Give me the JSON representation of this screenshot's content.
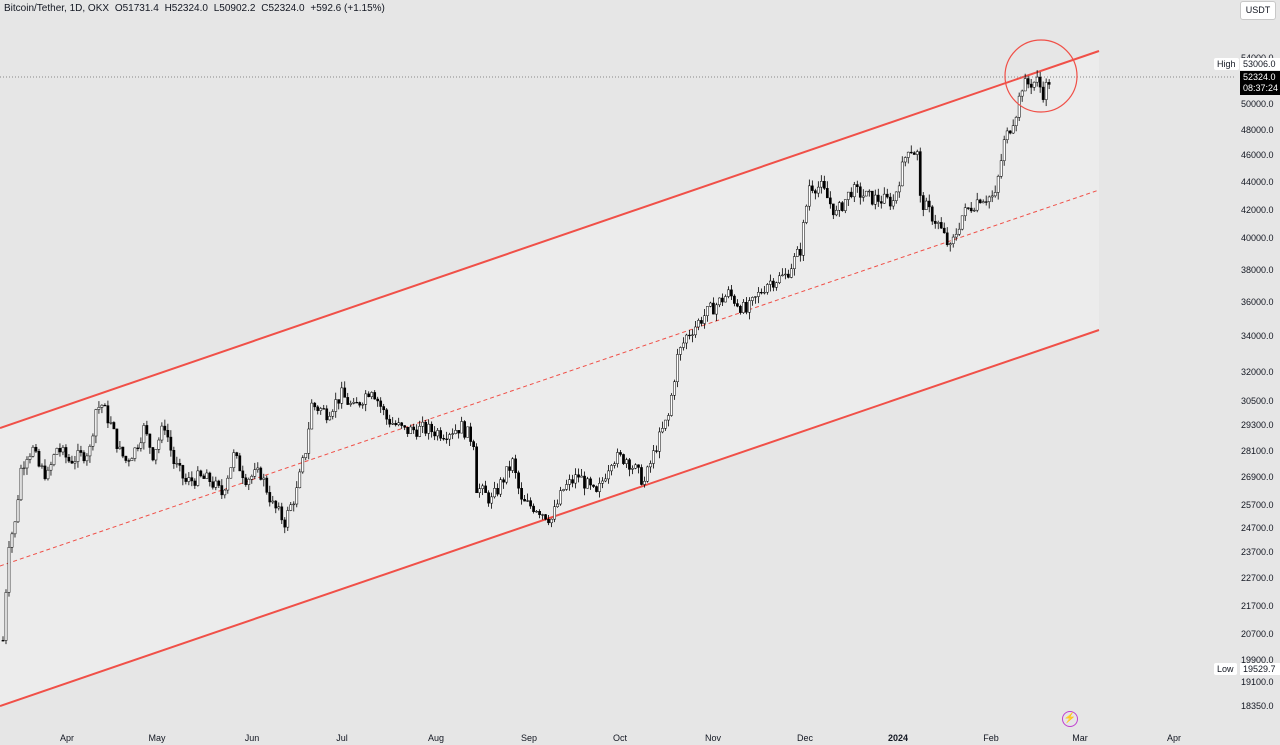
{
  "header": {
    "symbol": "Bitcoin/Tether, 1D, OKX",
    "open": "O51731.4",
    "high": "H52324.0",
    "low": "L50902.2",
    "close": "C52324.0",
    "change": "+592.6 (+1.15%)"
  },
  "currency_badge": "USDT",
  "price_scale": {
    "ticks": [
      "54000.0",
      "53006.0",
      "50000.0",
      "48000.0",
      "46000.0",
      "44000.0",
      "42000.0",
      "40000.0",
      "38000.0",
      "36000.0",
      "34000.0",
      "32000.0",
      "30500.0",
      "29300.0",
      "28100.0",
      "26900.0",
      "25700.0",
      "24700.0",
      "23700.0",
      "22700.0",
      "21700.0",
      "20700.0",
      "19900.0",
      "19529.7",
      "19100.0",
      "18350.0"
    ],
    "last_price": "52324.0",
    "countdown": "08:37:24",
    "high_label": "High",
    "high_value": "53006.0",
    "low_label": "Low",
    "low_value": "19529.7"
  },
  "time_scale": {
    "labels": [
      "Apr",
      "May",
      "Jun",
      "Jul",
      "Aug",
      "Sep",
      "Oct",
      "Nov",
      "Dec",
      "2024",
      "Feb",
      "Mar",
      "Apr"
    ]
  },
  "colors": {
    "channel_line": "#f05048",
    "channel_fill": "#ececec",
    "candle": "#000000",
    "circle": "#f05048",
    "background": "#e6e6e6"
  },
  "icons": {
    "bolt": "lightning-icon"
  },
  "chart_data": {
    "type": "candlestick",
    "title": "Bitcoin/Tether, 1D, OKX",
    "y_scale": "log",
    "ylim": [
      17800,
      56000
    ],
    "x_range": [
      "2023-03-11",
      "2024-04-26"
    ],
    "ohlc_close": [
      [
        "2023-03-12",
        20600
      ],
      [
        "2023-03-14",
        24300
      ],
      [
        "2023-03-16",
        25000
      ],
      [
        "2023-03-18",
        27400
      ],
      [
        "2023-03-20",
        28100
      ],
      [
        "2023-03-22",
        28300
      ],
      [
        "2023-03-24",
        27500
      ],
      [
        "2023-03-27",
        27100
      ],
      [
        "2023-03-30",
        28400
      ],
      [
        "2023-04-03",
        27800
      ],
      [
        "2023-04-07",
        28000
      ],
      [
        "2023-04-10",
        28300
      ],
      [
        "2023-04-12",
        30300
      ],
      [
        "2023-04-14",
        30500
      ],
      [
        "2023-04-17",
        29500
      ],
      [
        "2023-04-20",
        28200
      ],
      [
        "2023-04-22",
        27800
      ],
      [
        "2023-04-25",
        28300
      ],
      [
        "2023-04-28",
        29300
      ],
      [
        "2023-05-01",
        28100
      ],
      [
        "2023-05-05",
        29500
      ],
      [
        "2023-05-08",
        27700
      ],
      [
        "2023-05-12",
        26800
      ],
      [
        "2023-05-16",
        27000
      ],
      [
        "2023-05-20",
        26900
      ],
      [
        "2023-05-24",
        26300
      ],
      [
        "2023-05-28",
        28000
      ],
      [
        "2023-06-01",
        27000
      ],
      [
        "2023-06-06",
        27200
      ],
      [
        "2023-06-10",
        25800
      ],
      [
        "2023-06-14",
        25100
      ],
      [
        "2023-06-18",
        26400
      ],
      [
        "2023-06-21",
        28300
      ],
      [
        "2023-06-23",
        30500
      ],
      [
        "2023-06-28",
        30100
      ],
      [
        "2023-07-03",
        31000
      ],
      [
        "2023-07-07",
        30300
      ],
      [
        "2023-07-13",
        31400
      ],
      [
        "2023-07-18",
        29800
      ],
      [
        "2023-07-24",
        29200
      ],
      [
        "2023-07-30",
        29300
      ],
      [
        "2023-08-06",
        29100
      ],
      [
        "2023-08-12",
        29400
      ],
      [
        "2023-08-16",
        28700
      ],
      [
        "2023-08-17",
        26600
      ],
      [
        "2023-08-22",
        26000
      ],
      [
        "2023-08-29",
        27700
      ],
      [
        "2023-09-01",
        25900
      ],
      [
        "2023-09-06",
        25700
      ],
      [
        "2023-09-11",
        25200
      ],
      [
        "2023-09-15",
        26500
      ],
      [
        "2023-09-20",
        27100
      ],
      [
        "2023-09-26",
        26200
      ],
      [
        "2023-10-01",
        27900
      ],
      [
        "2023-10-06",
        27900
      ],
      [
        "2023-10-12",
        26800
      ],
      [
        "2023-10-16",
        28500
      ],
      [
        "2023-10-20",
        29900
      ],
      [
        "2023-10-23",
        33000
      ],
      [
        "2023-10-26",
        34200
      ],
      [
        "2023-11-01",
        35400
      ],
      [
        "2023-11-09",
        36700
      ],
      [
        "2023-11-15",
        35600
      ],
      [
        "2023-11-22",
        37400
      ],
      [
        "2023-11-28",
        37800
      ],
      [
        "2023-12-03",
        39500
      ],
      [
        "2023-12-06",
        44000
      ],
      [
        "2023-12-10",
        43800
      ],
      [
        "2023-12-15",
        41900
      ],
      [
        "2023-12-20",
        43600
      ],
      [
        "2023-12-27",
        43000
      ],
      [
        "2024-01-03",
        42800
      ],
      [
        "2024-01-08",
        46900
      ],
      [
        "2024-01-11",
        46300
      ],
      [
        "2024-01-12",
        42900
      ],
      [
        "2024-01-18",
        41200
      ],
      [
        "2024-01-22",
        39500
      ],
      [
        "2024-01-26",
        41800
      ],
      [
        "2024-02-01",
        43100
      ],
      [
        "2024-02-06",
        43100
      ],
      [
        "2024-02-09",
        47200
      ],
      [
        "2024-02-13",
        49700
      ],
      [
        "2024-02-15",
        51900
      ],
      [
        "2024-02-20",
        52300
      ],
      [
        "2024-02-22",
        51300
      ],
      [
        "2024-02-24",
        52324
      ]
    ],
    "channel": {
      "upper": [
        [
          "2023-03-11",
          30000
        ],
        [
          "2024-02-29",
          53006
        ]
      ],
      "middle": [
        [
          "2023-03-11",
          23900
        ],
        [
          "2024-02-29",
          42600
        ]
      ],
      "lower": [
        [
          "2023-03-11",
          18800
        ],
        [
          "2024-02-29",
          34100
        ]
      ]
    },
    "annotation": "circle around the February 2024 highs"
  }
}
